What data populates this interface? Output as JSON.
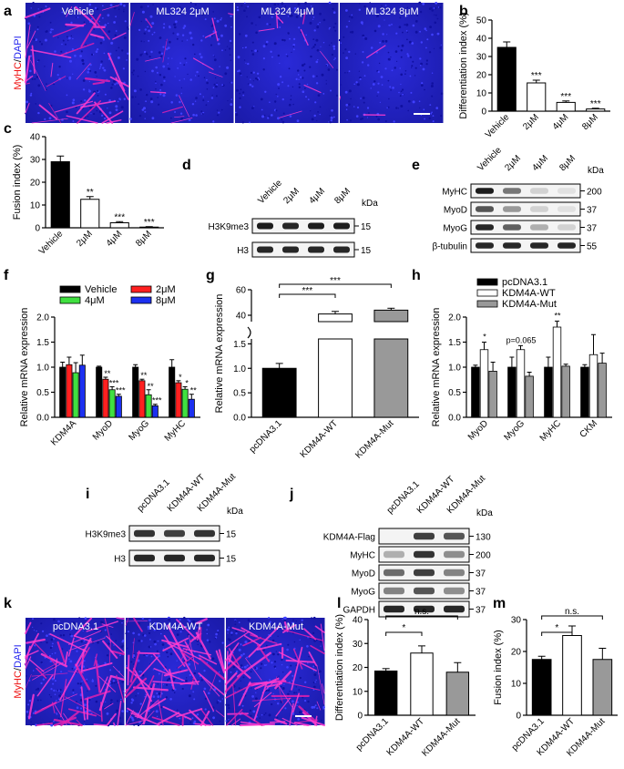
{
  "panel_labels": [
    "a",
    "b",
    "c",
    "d",
    "e",
    "f",
    "g",
    "h",
    "i",
    "j",
    "k",
    "l",
    "m"
  ],
  "panel_a": {
    "side_label_red": "MyHC",
    "side_label_sep": "/",
    "side_label_blue": "DAPI",
    "columns": [
      "Vehicle",
      "ML324 2μM",
      "ML324 4μM",
      "ML324 8μM"
    ]
  },
  "panel_k": {
    "side_label_red": "MyHC",
    "side_label_sep": "/",
    "side_label_blue": "DAPI",
    "columns": [
      "pcDNA3.1",
      "KDM4A-WT",
      "KDM4A-Mut"
    ]
  },
  "panel_d": {
    "lanes": [
      "Vehicle",
      "2μM",
      "4μM",
      "8μM"
    ],
    "unit": "kDa",
    "bands": [
      {
        "name": "H3K9me3",
        "kda": "15"
      },
      {
        "name": "H3",
        "kda": "15"
      }
    ]
  },
  "panel_e": {
    "lanes": [
      "Vehicle",
      "2μM",
      "4μM",
      "8μM"
    ],
    "unit": "kDa",
    "bands": [
      {
        "name": "MyHC",
        "kda": "200"
      },
      {
        "name": "MyoD",
        "kda": "37"
      },
      {
        "name": "MyoG",
        "kda": "37"
      },
      {
        "name": "β-tubulin",
        "kda": "55"
      }
    ]
  },
  "panel_i": {
    "lanes": [
      "pcDNA3.1",
      "KDM4A-WT",
      "KDM4A-Mut"
    ],
    "unit": "kDa",
    "bands": [
      {
        "name": "H3K9me3",
        "kda": "15"
      },
      {
        "name": "H3",
        "kda": "15"
      }
    ]
  },
  "panel_j": {
    "lanes": [
      "pcDNA3.1",
      "KDM4A-WT",
      "KDM4A-Mut"
    ],
    "unit": "kDa",
    "bands": [
      {
        "name": "KDM4A-Flag",
        "kda": "130"
      },
      {
        "name": "MyHC",
        "kda": "200"
      },
      {
        "name": "MyoD",
        "kda": "37"
      },
      {
        "name": "MyoG",
        "kda": "37"
      },
      {
        "name": "GAPDH",
        "kda": "37"
      }
    ]
  },
  "chart_data": [
    {
      "id": "b",
      "type": "bar",
      "categories": [
        "Vehicle",
        "2μM",
        "4μM",
        "8μM"
      ],
      "values": [
        35,
        15.5,
        4.8,
        1.2
      ],
      "errors": [
        3,
        1.5,
        0.8,
        0.4
      ],
      "colors": [
        "#000000",
        "#ffffff",
        "#ffffff",
        "#ffffff"
      ],
      "sig": [
        "",
        "***",
        "***",
        "***"
      ],
      "ylabel": "Differentiation index (%)",
      "ylim": [
        0,
        50
      ],
      "yticks": [
        0,
        10,
        20,
        30,
        40,
        50
      ]
    },
    {
      "id": "c",
      "type": "bar",
      "categories": [
        "Vehicle",
        "2μM",
        "4μM",
        "8μM"
      ],
      "values": [
        29,
        12.5,
        2.2,
        0.3
      ],
      "errors": [
        2.5,
        1.2,
        0.5,
        0.2
      ],
      "colors": [
        "#000000",
        "#ffffff",
        "#ffffff",
        "#ffffff"
      ],
      "sig": [
        "",
        "**",
        "***",
        "***"
      ],
      "ylabel": "Fusion index (%)",
      "ylim": [
        0,
        40
      ],
      "yticks": [
        0,
        10,
        20,
        30,
        40
      ]
    },
    {
      "id": "f",
      "type": "bar",
      "categories": [
        "KDM4A",
        "MyoD",
        "MyoG",
        "MyHC"
      ],
      "series": [
        {
          "name": "Vehicle",
          "color": "#000000",
          "values": [
            1.0,
            1.0,
            1.0,
            1.0
          ],
          "errors": [
            0.1,
            0.02,
            0.05,
            0.15
          ],
          "sig": [
            "",
            "",
            "",
            ""
          ]
        },
        {
          "name": "2μM",
          "color": "#ff2020",
          "values": [
            1.05,
            0.76,
            0.73,
            0.69
          ],
          "errors": [
            0.15,
            0.04,
            0.03,
            0.04
          ],
          "sig": [
            "",
            "**",
            "**",
            "*"
          ]
        },
        {
          "name": "4μM",
          "color": "#40e040",
          "values": [
            0.89,
            0.55,
            0.45,
            0.56
          ],
          "errors": [
            0.2,
            0.06,
            0.1,
            0.05
          ],
          "sig": [
            "",
            "***",
            "**",
            "*"
          ]
        },
        {
          "name": "8μM",
          "color": "#1c30f0",
          "values": [
            1.04,
            0.42,
            0.23,
            0.36
          ],
          "errors": [
            0.2,
            0.04,
            0.03,
            0.1
          ],
          "sig": [
            "",
            "***",
            "***",
            "**"
          ]
        }
      ],
      "ylabel": "Relative mRNA expression",
      "ylim": [
        0,
        2.0
      ],
      "yticks": [
        0.0,
        0.5,
        1.0,
        1.5,
        2.0
      ],
      "legend": "top"
    },
    {
      "id": "g",
      "type": "bar",
      "categories": [
        "pcDNA3.1",
        "KDM4A-WT",
        "KDM4A-Mut"
      ],
      "values": [
        1.0,
        41,
        44
      ],
      "errors": [
        0.1,
        2,
        1.5
      ],
      "colors": [
        "#000000",
        "#ffffff",
        "#999999"
      ],
      "ylabel": "Relative mRNA expression",
      "axis_break": true,
      "lower_yticks": [
        0.0,
        0.5,
        1.0,
        1.5
      ],
      "lower_ylim": [
        0,
        1.6
      ],
      "upper_yticks": [
        40,
        60
      ],
      "upper_ylim": [
        35,
        60
      ],
      "comparisons": [
        {
          "from": 0,
          "to": 1,
          "label": "***"
        },
        {
          "from": 0,
          "to": 2,
          "label": "***"
        }
      ]
    },
    {
      "id": "h",
      "type": "bar",
      "categories": [
        "MyoD",
        "MyoG",
        "MyHC",
        "CKM"
      ],
      "series": [
        {
          "name": "pcDNA3.1",
          "color": "#000000",
          "values": [
            1.0,
            1.0,
            1.0,
            1.0
          ],
          "errors": [
            0.04,
            0.2,
            0.2,
            0.05
          ]
        },
        {
          "name": "KDM4A-WT",
          "color": "#ffffff",
          "values": [
            1.35,
            1.35,
            1.8,
            1.25
          ],
          "errors": [
            0.15,
            0.08,
            0.12,
            0.4
          ]
        },
        {
          "name": "KDM4A-Mut",
          "color": "#999999",
          "values": [
            0.92,
            0.82,
            1.02,
            1.08
          ],
          "errors": [
            0.18,
            0.08,
            0.04,
            0.2
          ]
        }
      ],
      "annotations": [
        "*",
        "p=0.065",
        "**",
        ""
      ],
      "ylabel": "Relative mRNA expression",
      "ylim": [
        0,
        2.0
      ],
      "yticks": [
        0.0,
        0.5,
        1.0,
        1.5,
        2.0
      ],
      "legend": "top"
    },
    {
      "id": "l",
      "type": "bar",
      "categories": [
        "pcDNA3.1",
        "KDM4A-WT",
        "KDM4A-Mut"
      ],
      "values": [
        18.5,
        26,
        18
      ],
      "errors": [
        1,
        3,
        4
      ],
      "colors": [
        "#000000",
        "#ffffff",
        "#999999"
      ],
      "ylabel": "Differentiation index (%)",
      "ylim": [
        0,
        40
      ],
      "yticks": [
        0,
        10,
        20,
        30,
        40
      ],
      "comparisons": [
        {
          "from": 0,
          "to": 1,
          "label": "*"
        },
        {
          "from": 0,
          "to": 2,
          "label": "n.s."
        }
      ]
    },
    {
      "id": "m",
      "type": "bar",
      "categories": [
        "pcDNA3.1",
        "KDM4A-WT",
        "KDM4A-Mut"
      ],
      "values": [
        17.5,
        25,
        17.5
      ],
      "errors": [
        1,
        3,
        3.5
      ],
      "colors": [
        "#000000",
        "#ffffff",
        "#999999"
      ],
      "ylabel": "Fusion index (%)",
      "ylim": [
        0,
        30
      ],
      "yticks": [
        0,
        10,
        20,
        30
      ],
      "comparisons": [
        {
          "from": 0,
          "to": 1,
          "label": "*"
        },
        {
          "from": 0,
          "to": 2,
          "label": "n.s."
        }
      ]
    }
  ]
}
